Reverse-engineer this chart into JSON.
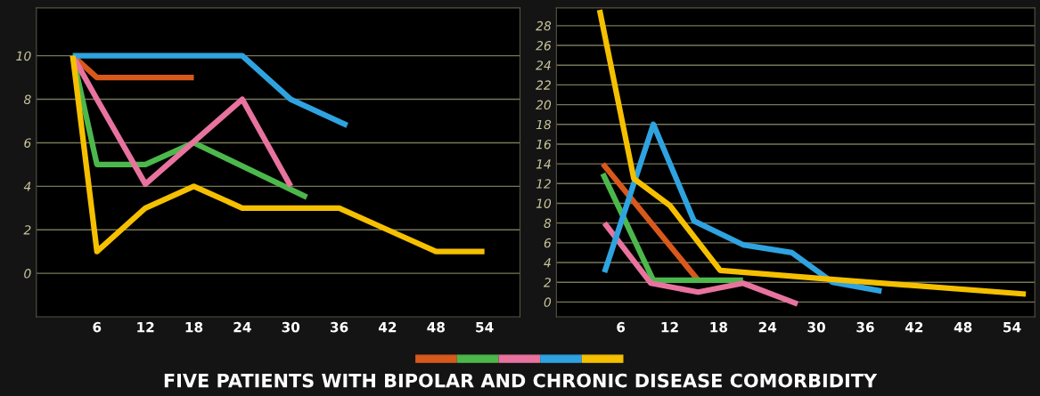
{
  "chart_data": [
    {
      "type": "line",
      "title": "FIVE PATIENTS WITH BIPOLAR AND CHRONIC DISEASE COMORBIDITY",
      "xlim": [
        -1.5,
        58.4
      ],
      "ylim": [
        -2,
        12.2
      ],
      "xticks": [
        6,
        12,
        18,
        24,
        30,
        36,
        42,
        48,
        54
      ],
      "yticks": [
        0,
        2,
        4,
        6,
        8,
        10
      ],
      "grid": "y",
      "marker": "none",
      "line_style": "solid",
      "series": [
        {
          "color": "#d9581c",
          "x": [
            3,
            6,
            18
          ],
          "values": [
            10,
            9,
            9
          ]
        },
        {
          "color": "#4cb84c",
          "x": [
            3,
            6,
            12,
            18,
            32
          ],
          "values": [
            10,
            5,
            5,
            6,
            3.5
          ]
        },
        {
          "color": "#e8739e",
          "x": [
            3,
            6,
            12,
            24,
            30
          ],
          "values": [
            10,
            8,
            4.1,
            8,
            4
          ]
        },
        {
          "color": "#2ea3e0",
          "x": [
            3,
            24,
            30,
            37
          ],
          "values": [
            10,
            10,
            8,
            6.8
          ]
        },
        {
          "color": "#f5c000",
          "x": [
            3,
            6,
            12,
            18,
            24,
            36,
            42,
            48,
            54
          ],
          "values": [
            10,
            1,
            3,
            4,
            3,
            3,
            2,
            1,
            1
          ]
        }
      ]
    },
    {
      "type": "line",
      "xlim": [
        -1.9,
        56.8
      ],
      "ylim": [
        -1.5,
        29.8
      ],
      "xticks": [
        6,
        12,
        18,
        24,
        30,
        36,
        42,
        48,
        54
      ],
      "yticks": [
        0,
        2,
        4,
        6,
        8,
        10,
        12,
        14,
        16,
        18,
        20,
        22,
        24,
        26,
        28
      ],
      "grid": "y",
      "marker": "none",
      "line_style": "solid",
      "series": [
        {
          "color": "#d9581c",
          "x": [
            3.8,
            15.5
          ],
          "values": [
            14,
            2.2
          ]
        },
        {
          "color": "#4cb84c",
          "x": [
            3.8,
            10,
            21
          ],
          "values": [
            13,
            2.2,
            2.2
          ]
        },
        {
          "color": "#e8739e",
          "x": [
            4,
            9.7,
            15.5,
            21,
            27.7
          ],
          "values": [
            8,
            1.9,
            1,
            1.9,
            -0.2
          ]
        },
        {
          "color": "#2ea3e0",
          "x": [
            4,
            10,
            15,
            21,
            27,
            32,
            38
          ],
          "values": [
            3,
            18,
            8.2,
            5.8,
            5,
            2,
            1.1
          ]
        },
        {
          "color": "#f5c000",
          "x": [
            3.4,
            7.6,
            12,
            18.2,
            31.8,
            55.7
          ],
          "values": [
            29.6,
            12.5,
            9.8,
            3.2,
            2.3,
            0.8
          ]
        }
      ]
    }
  ]
}
